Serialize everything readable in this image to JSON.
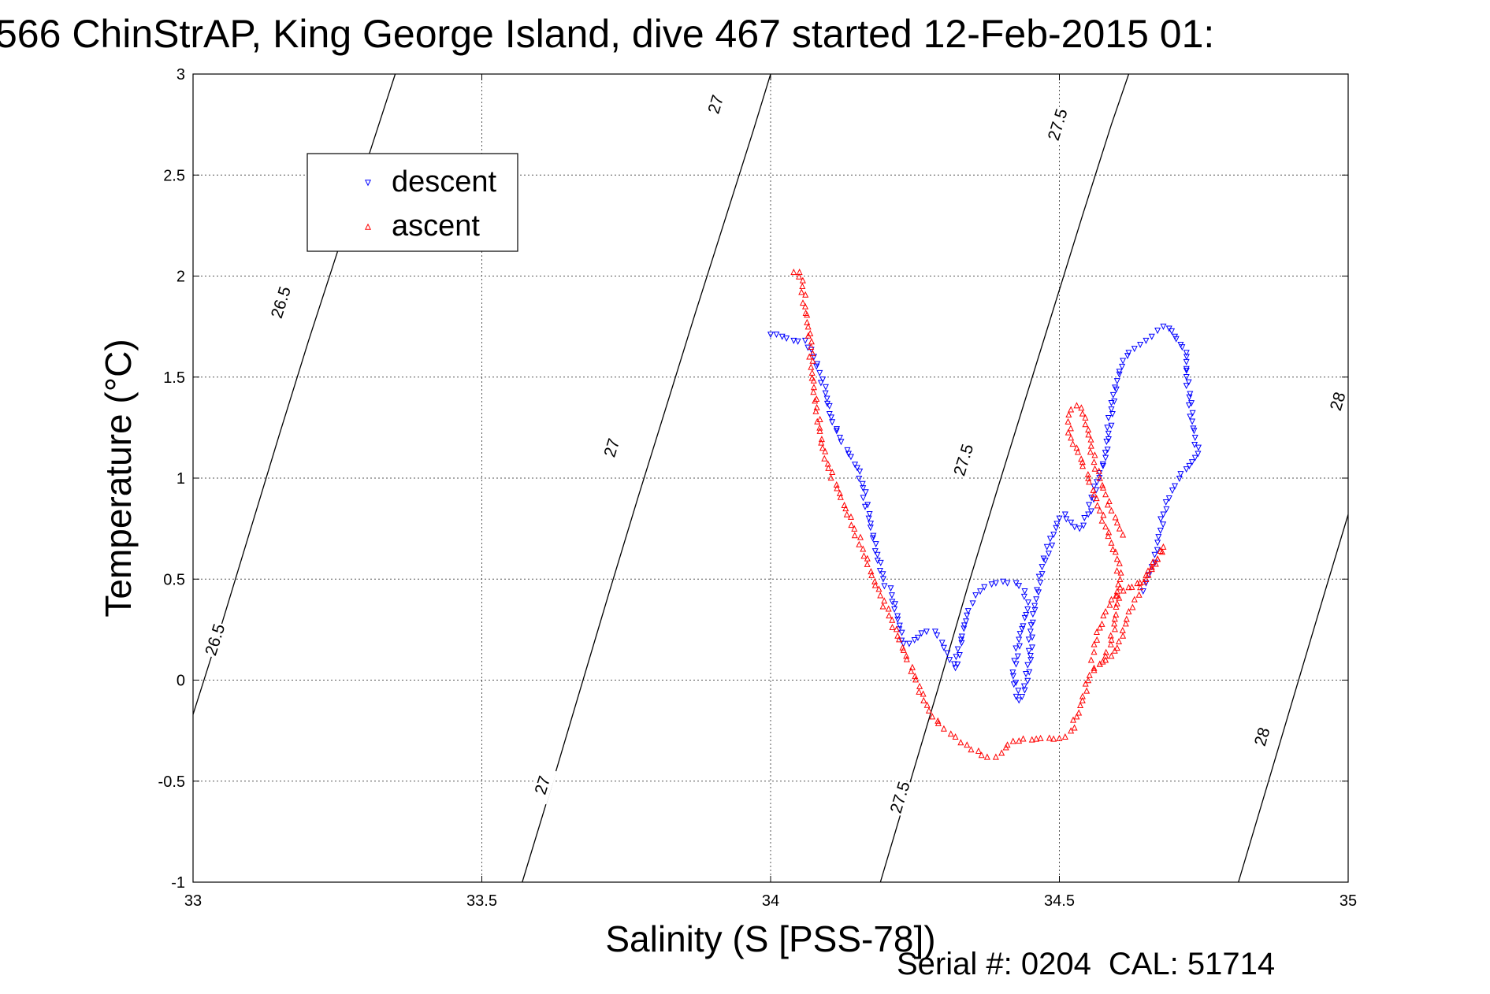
{
  "title": "566 ChinStrAP, King George Island, dive 467 started 12-Feb-2015 01:",
  "footer": {
    "serial": "Serial #: 0204",
    "cal": "CAL: 51714"
  },
  "chart_data": {
    "type": "scatter",
    "title": "566 ChinStrAP, King George Island, dive 467 started 12-Feb-2015 01:",
    "xlabel": "Salinity (S [PSS-78])",
    "ylabel": "Temperature (°C)",
    "xlim": [
      33,
      35
    ],
    "ylim": [
      -1,
      3
    ],
    "xticks": [
      33,
      33.5,
      34,
      34.5,
      35
    ],
    "xtick_labels": [
      "33",
      "33.5",
      "34",
      "34.5",
      "35"
    ],
    "yticks": [
      -1,
      -0.5,
      0,
      0.5,
      1,
      1.5,
      2,
      2.5,
      3
    ],
    "ytick_labels": [
      "-1",
      "-0.5",
      "0",
      "0.5",
      "1",
      "1.5",
      "2",
      "2.5",
      "3"
    ],
    "grid": true,
    "legend": {
      "position": "top-left",
      "entries": [
        "descent",
        "ascent"
      ]
    },
    "colors": {
      "descent": "#0000ff",
      "ascent": "#ff0000",
      "contour": "#000000"
    },
    "contours": [
      {
        "label": "26.5",
        "points": [
          [
            33.0,
            -0.17
          ],
          [
            33.05,
            0.28
          ],
          [
            33.1,
            0.75
          ],
          [
            33.15,
            1.22
          ],
          [
            33.2,
            1.68
          ],
          [
            33.25,
            2.12
          ],
          [
            33.3,
            2.56
          ],
          [
            33.35,
            3.0
          ]
        ],
        "label_positions": [
          [
            33.038,
            0.2
          ],
          [
            33.152,
            1.87
          ]
        ]
      },
      {
        "label": "27",
        "points": [
          [
            33.57,
            -1.0
          ],
          [
            33.62,
            -0.53
          ],
          [
            33.67,
            -0.05
          ],
          [
            33.72,
            0.43
          ],
          [
            33.77,
            0.9
          ],
          [
            33.82,
            1.36
          ],
          [
            33.87,
            1.82
          ],
          [
            33.92,
            2.27
          ],
          [
            33.97,
            2.72
          ],
          [
            34.0,
            3.0
          ]
        ],
        "label_positions": [
          [
            33.605,
            -0.52
          ],
          [
            33.725,
            1.15
          ],
          [
            33.905,
            2.85
          ]
        ]
      },
      {
        "label": "27.5",
        "points": [
          [
            34.19,
            -1.0
          ],
          [
            34.24,
            -0.52
          ],
          [
            34.29,
            -0.04
          ],
          [
            34.34,
            0.45
          ],
          [
            34.39,
            0.92
          ],
          [
            34.44,
            1.38
          ],
          [
            34.49,
            1.84
          ],
          [
            34.54,
            2.3
          ],
          [
            34.59,
            2.75
          ],
          [
            34.62,
            3.0
          ]
        ],
        "label_positions": [
          [
            34.224,
            -0.58
          ],
          [
            34.334,
            1.09
          ],
          [
            34.497,
            2.75
          ]
        ]
      },
      {
        "label": "28",
        "points": [
          [
            34.81,
            -1.0
          ],
          [
            34.86,
            -0.52
          ],
          [
            34.91,
            -0.04
          ],
          [
            34.96,
            0.44
          ],
          [
            35.0,
            0.82
          ]
        ],
        "label_positions": [
          [
            34.851,
            -0.28
          ],
          [
            34.982,
            1.38
          ]
        ]
      }
    ],
    "contour_range": [
      [
        34.81,
        -1.0
      ],
      [
        35.0,
        1.64
      ]
    ],
    "series": [
      {
        "name": "descent",
        "marker": "triangle-down",
        "x": [
          34.0,
          34.02,
          34.04,
          34.06,
          34.075,
          34.085,
          34.095,
          34.105,
          34.12,
          34.135,
          34.15,
          34.16,
          34.17,
          34.185,
          34.195,
          34.21,
          34.22,
          34.23,
          34.24,
          34.255,
          34.27,
          34.285,
          34.3,
          34.31,
          34.32,
          34.33,
          34.34,
          34.35,
          34.355,
          34.37,
          34.39,
          34.41,
          34.425,
          34.44,
          34.445,
          34.43,
          34.42,
          34.43,
          34.44,
          34.45,
          34.45,
          34.46,
          34.47,
          34.49,
          34.5,
          34.51,
          34.52,
          34.535,
          34.55,
          34.565,
          34.58,
          34.585,
          34.59,
          34.6,
          34.61,
          34.62,
          34.63,
          34.64,
          34.65,
          34.66,
          34.67,
          34.68,
          34.69,
          34.7,
          34.71,
          34.72,
          34.72,
          34.725,
          34.73,
          34.735,
          34.74,
          34.735,
          34.725,
          34.71,
          34.7,
          34.69,
          34.68,
          34.675,
          34.67,
          34.665,
          34.66,
          34.655,
          34.65,
          34.645
        ],
        "y": [
          1.71,
          1.7,
          1.68,
          1.68,
          1.6,
          1.52,
          1.42,
          1.3,
          1.2,
          1.12,
          1.05,
          0.95,
          0.8,
          0.62,
          0.5,
          0.42,
          0.3,
          0.18,
          0.18,
          0.21,
          0.24,
          0.24,
          0.16,
          0.1,
          0.06,
          0.2,
          0.32,
          0.38,
          0.42,
          0.46,
          0.48,
          0.48,
          0.48,
          0.44,
          0.35,
          0.2,
          0.02,
          -0.1,
          -0.05,
          0.12,
          0.24,
          0.4,
          0.56,
          0.72,
          0.8,
          0.82,
          0.78,
          0.75,
          0.82,
          0.98,
          1.1,
          1.22,
          1.34,
          1.48,
          1.58,
          1.62,
          1.64,
          1.66,
          1.68,
          1.7,
          1.73,
          1.75,
          1.74,
          1.7,
          1.66,
          1.62,
          1.5,
          1.4,
          1.28,
          1.2,
          1.12,
          1.1,
          1.06,
          1.02,
          0.96,
          0.9,
          0.82,
          0.74,
          0.68,
          0.62,
          0.56,
          0.52,
          0.48,
          0.44
        ]
      },
      {
        "name": "ascent",
        "marker": "triangle-up",
        "x": [
          34.04,
          34.05,
          34.055,
          34.06,
          34.065,
          34.07,
          34.07,
          34.075,
          34.08,
          34.085,
          34.09,
          34.1,
          34.115,
          34.13,
          34.145,
          34.16,
          34.175,
          34.19,
          34.205,
          34.22,
          34.235,
          34.25,
          34.265,
          34.28,
          34.3,
          34.32,
          34.34,
          34.36,
          34.375,
          34.39,
          34.4,
          34.41,
          34.43,
          34.46,
          34.49,
          34.51,
          34.52,
          34.53,
          34.54,
          34.55,
          34.56,
          34.57,
          34.58,
          34.59,
          34.6,
          34.61,
          34.615,
          34.62,
          34.63,
          34.64,
          34.65,
          34.66,
          34.67,
          34.675,
          34.68,
          34.67,
          34.66,
          34.65,
          34.635,
          34.62,
          34.6,
          34.59,
          34.58,
          34.57,
          34.565,
          34.56,
          34.555,
          34.56,
          34.57,
          34.58,
          34.59,
          34.595,
          34.6,
          34.605,
          34.6,
          34.59,
          34.58,
          34.57,
          34.56,
          34.55,
          34.54,
          34.53,
          34.52,
          34.515,
          34.52,
          34.53,
          34.54,
          34.55,
          34.555,
          34.56,
          34.57,
          34.58,
          34.59,
          34.6,
          34.61
        ],
        "y": [
          2.02,
          2.02,
          1.95,
          1.85,
          1.75,
          1.65,
          1.55,
          1.45,
          1.35,
          1.25,
          1.15,
          1.05,
          0.95,
          0.85,
          0.75,
          0.65,
          0.52,
          0.42,
          0.32,
          0.22,
          0.12,
          0.02,
          -0.1,
          -0.18,
          -0.24,
          -0.28,
          -0.32,
          -0.35,
          -0.38,
          -0.38,
          -0.36,
          -0.32,
          -0.3,
          -0.29,
          -0.29,
          -0.28,
          -0.25,
          -0.18,
          -0.1,
          0.0,
          0.05,
          0.08,
          0.1,
          0.12,
          0.16,
          0.22,
          0.28,
          0.34,
          0.4,
          0.46,
          0.52,
          0.56,
          0.6,
          0.64,
          0.66,
          0.6,
          0.55,
          0.5,
          0.48,
          0.46,
          0.44,
          0.4,
          0.34,
          0.26,
          0.2,
          0.14,
          0.1,
          0.06,
          0.08,
          0.12,
          0.2,
          0.28,
          0.38,
          0.5,
          0.6,
          0.68,
          0.76,
          0.84,
          0.92,
          1.0,
          1.08,
          1.15,
          1.2,
          1.28,
          1.34,
          1.36,
          1.32,
          1.24,
          1.16,
          1.08,
          1.0,
          0.92,
          0.84,
          0.78,
          0.72
        ]
      }
    ]
  }
}
